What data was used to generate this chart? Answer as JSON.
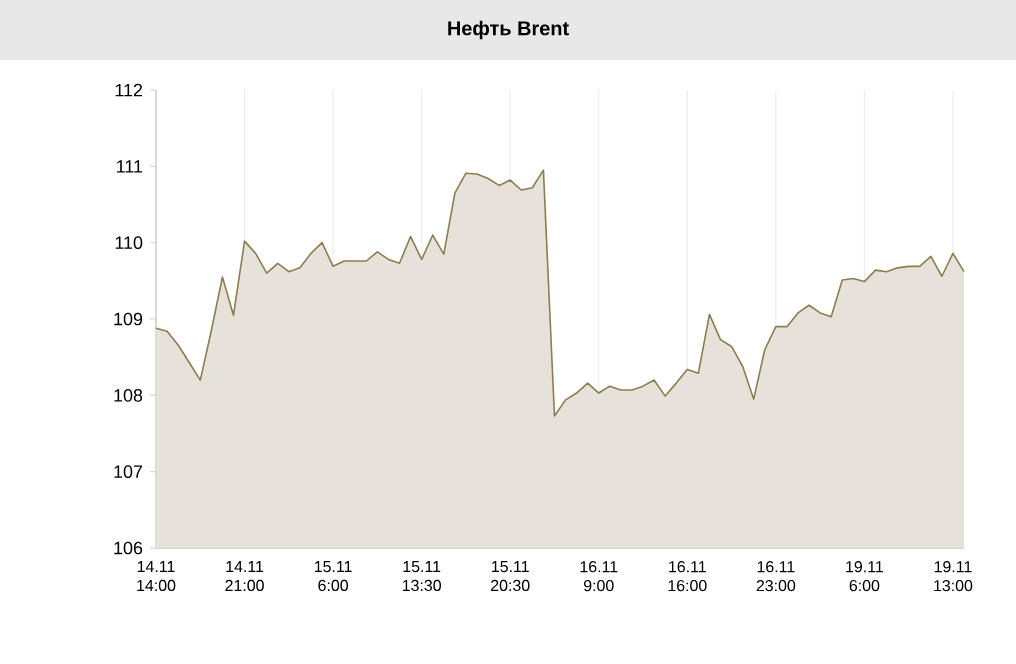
{
  "chart_data": {
    "type": "area",
    "title": "Нефть Brent",
    "categories": [
      "14.11 14:00",
      null,
      null,
      null,
      null,
      null,
      null,
      null,
      "14.11 21:00",
      null,
      null,
      null,
      null,
      null,
      null,
      null,
      "15.11 6:00",
      null,
      null,
      null,
      null,
      null,
      null,
      null,
      "15.11 13:30",
      null,
      null,
      null,
      null,
      null,
      null,
      null,
      "15.11 20:30",
      null,
      null,
      null,
      null,
      null,
      null,
      null,
      "16.11 9:00",
      null,
      null,
      null,
      null,
      null,
      null,
      null,
      "16.11 16:00",
      null,
      null,
      null,
      null,
      null,
      null,
      null,
      "16.11 23:00",
      null,
      null,
      null,
      null,
      null,
      null,
      null,
      "19.11 6:00",
      null,
      null,
      null,
      null,
      null,
      null,
      null,
      "19.11 13:00",
      null
    ],
    "values": [
      108.88,
      108.84,
      108.66,
      108.43,
      108.2,
      108.85,
      109.55,
      109.05,
      110.02,
      109.86,
      109.6,
      109.73,
      109.62,
      109.67,
      109.86,
      110.0,
      109.69,
      109.76,
      109.76,
      109.76,
      109.88,
      109.78,
      109.73,
      110.08,
      109.78,
      110.1,
      109.85,
      110.65,
      110.91,
      110.9,
      110.84,
      110.75,
      110.82,
      110.69,
      110.72,
      110.95,
      107.73,
      107.94,
      108.03,
      108.16,
      108.03,
      108.12,
      108.07,
      108.07,
      108.12,
      108.2,
      107.99,
      108.16,
      108.34,
      108.29,
      109.06,
      108.73,
      108.64,
      108.38,
      107.95,
      108.6,
      108.9,
      108.9,
      109.08,
      109.18,
      109.08,
      109.03,
      109.51,
      109.53,
      109.49,
      109.64,
      109.62,
      109.67,
      109.69,
      109.69,
      109.82,
      109.56,
      109.86,
      109.62
    ],
    "color": "#8c7d52",
    "ylim": [
      106,
      112
    ],
    "yticks": [
      106,
      107,
      108,
      109,
      110,
      111,
      112
    ],
    "grid": "x"
  }
}
